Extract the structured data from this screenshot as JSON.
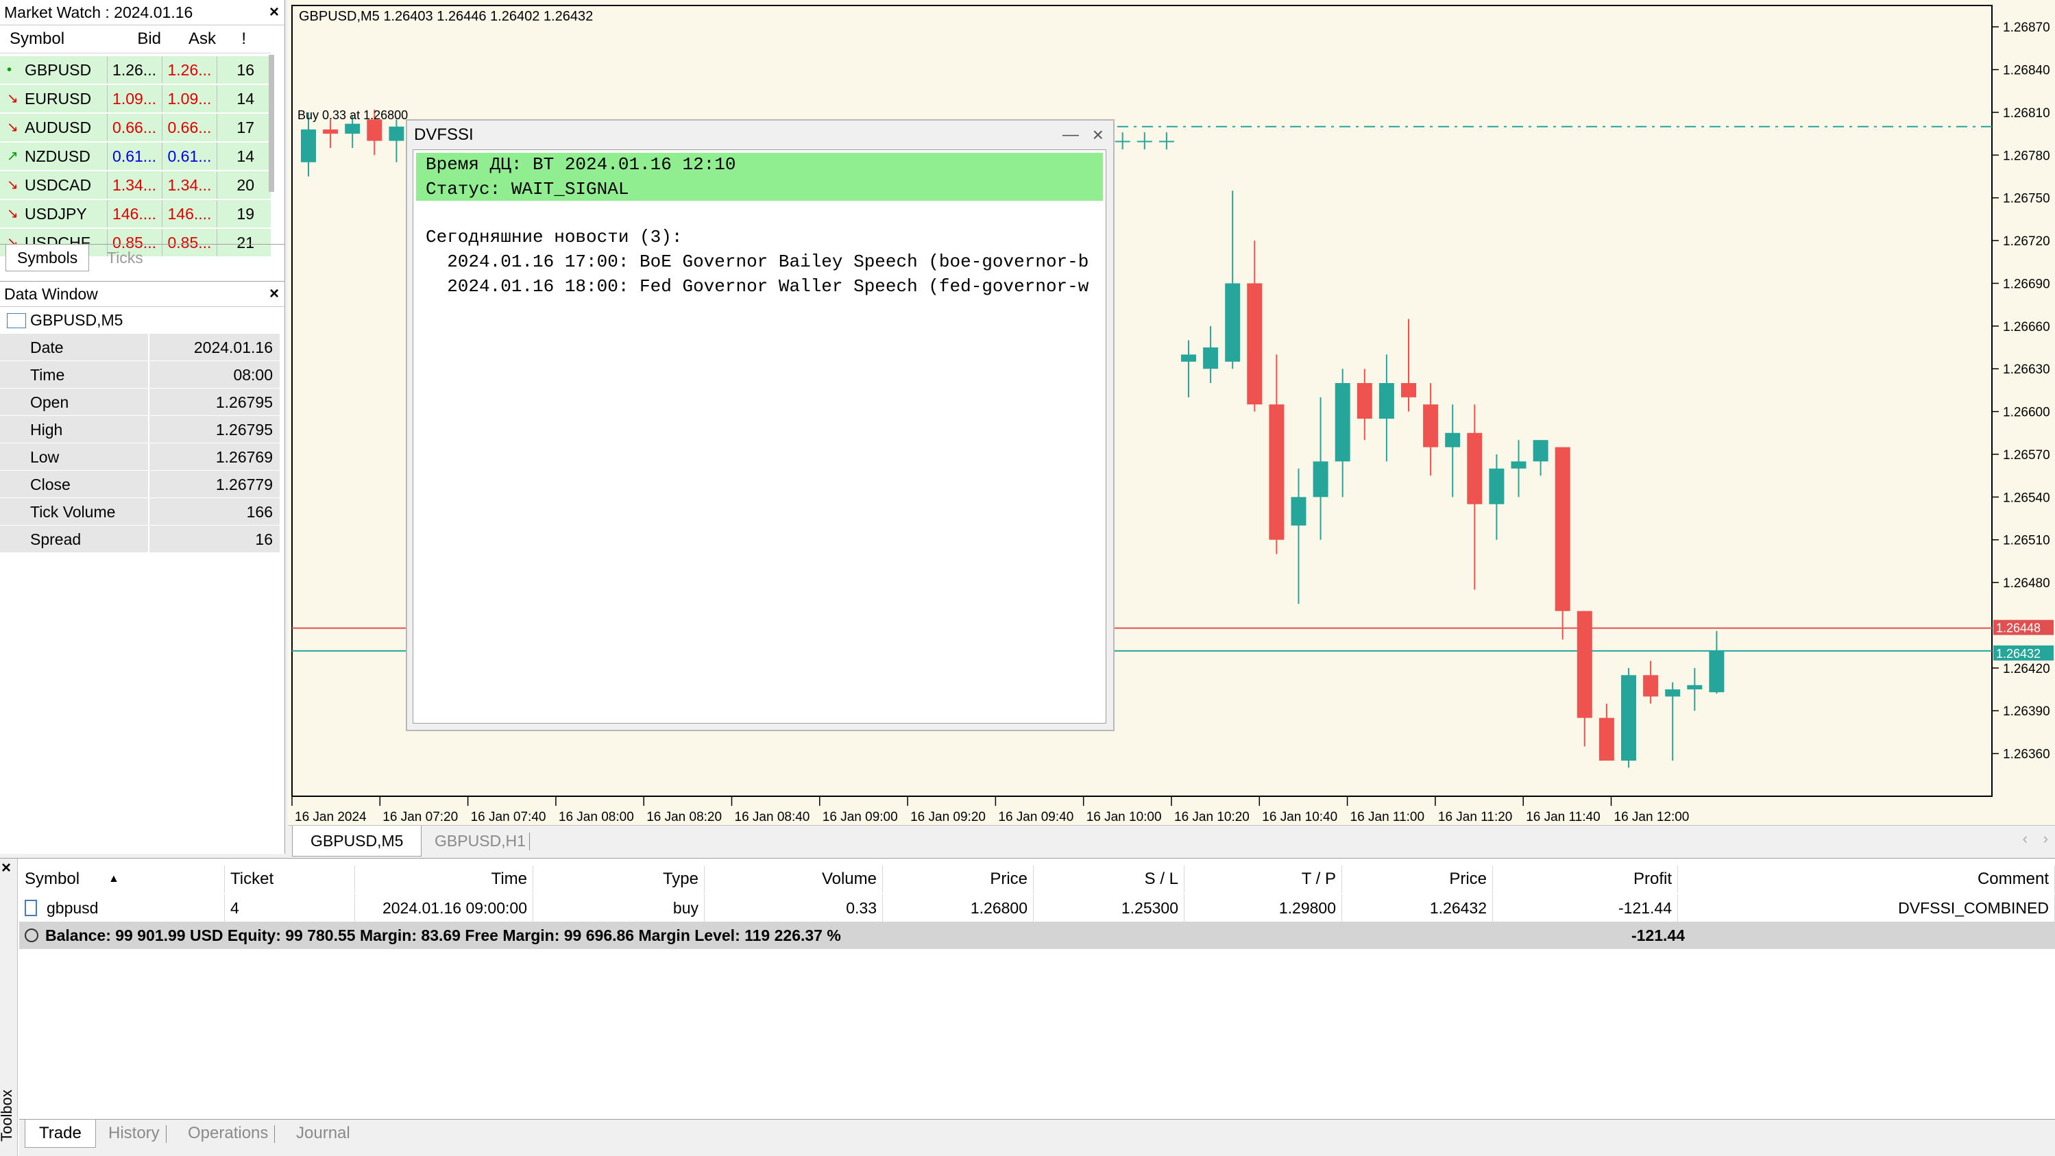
{
  "market_watch": {
    "title": "Market Watch : 2024.01.16",
    "columns": {
      "symbol": "Symbol",
      "bid": "Bid",
      "ask": "Ask",
      "spread": "!"
    },
    "rows": [
      {
        "symbol": "GBPUSD",
        "bid": "1.26...",
        "ask": "1.26...",
        "spread": "16",
        "dir": "neutral",
        "bid_color": "black",
        "ask_color": "red"
      },
      {
        "symbol": "EURUSD",
        "bid": "1.09...",
        "ask": "1.09...",
        "spread": "14",
        "dir": "down",
        "bid_color": "red",
        "ask_color": "red"
      },
      {
        "symbol": "AUDUSD",
        "bid": "0.66...",
        "ask": "0.66...",
        "spread": "17",
        "dir": "down",
        "bid_color": "red",
        "ask_color": "red"
      },
      {
        "symbol": "NZDUSD",
        "bid": "0.61...",
        "ask": "0.61...",
        "spread": "14",
        "dir": "up",
        "bid_color": "blue",
        "ask_color": "blue"
      },
      {
        "symbol": "USDCAD",
        "bid": "1.34...",
        "ask": "1.34...",
        "spread": "20",
        "dir": "down",
        "bid_color": "red",
        "ask_color": "red"
      },
      {
        "symbol": "USDJPY",
        "bid": "146....",
        "ask": "146....",
        "spread": "19",
        "dir": "down",
        "bid_color": "red",
        "ask_color": "red"
      },
      {
        "symbol": "USDCHF",
        "bid": "0.85...",
        "ask": "0.85...",
        "spread": "21",
        "dir": "down",
        "bid_color": "red",
        "ask_color": "red"
      }
    ],
    "tabs": [
      "Symbols",
      "Ticks"
    ]
  },
  "data_window": {
    "title": "Data Window",
    "symbol": "GBPUSD,M5",
    "rows": [
      {
        "k": "Date",
        "v": "2024.01.16"
      },
      {
        "k": "Time",
        "v": "08:00"
      },
      {
        "k": "Open",
        "v": "1.26795"
      },
      {
        "k": "High",
        "v": "1.26795"
      },
      {
        "k": "Low",
        "v": "1.26769"
      },
      {
        "k": "Close",
        "v": "1.26779"
      },
      {
        "k": "Tick Volume",
        "v": "166"
      },
      {
        "k": "Spread",
        "v": "16"
      }
    ]
  },
  "chart": {
    "header": "GBPUSD,M5  1.26403 1.26446 1.26402 1.26432",
    "trade_label": "Buy 0.33 at 1.26800",
    "price_labels": [
      "1.26870",
      "1.26840",
      "1.26810",
      "1.26780",
      "1.26750",
      "1.26720",
      "1.26690",
      "1.26660",
      "1.26630",
      "1.26600",
      "1.26570",
      "1.26540",
      "1.26510",
      "1.26480",
      "1.26420",
      "1.26390",
      "1.26360"
    ],
    "ask_label": "1.26448",
    "bid_label": "1.26432",
    "time_labels": [
      "16 Jan 2024",
      "16 Jan 07:20",
      "16 Jan 07:40",
      "16 Jan 08:00",
      "16 Jan 08:20",
      "16 Jan 08:40",
      "16 Jan 09:00",
      "16 Jan 09:20",
      "16 Jan 09:40",
      "16 Jan 10:00",
      "16 Jan 10:20",
      "16 Jan 10:40",
      "16 Jan 11:00",
      "16 Jan 11:20",
      "16 Jan 11:40",
      "16 Jan 12:00"
    ],
    "tabs": [
      "GBPUSD,M5",
      "GBPUSD,H1"
    ],
    "colors": {
      "bull": "#26a69a",
      "bear": "#ef5350",
      "bg": "#fbf8ea",
      "ask": "#e05050",
      "bid": "#26a69a"
    }
  },
  "chart_data": {
    "type": "candlestick",
    "ylim": [
      1.2633,
      1.26885
    ],
    "candles": [
      {
        "o": 1.26775,
        "h": 1.2681,
        "l": 1.26765,
        "c": 1.26798
      },
      {
        "o": 1.26798,
        "h": 1.26805,
        "l": 1.26785,
        "c": 1.26795
      },
      {
        "o": 1.26795,
        "h": 1.26808,
        "l": 1.26785,
        "c": 1.26802
      },
      {
        "o": 1.26805,
        "h": 1.26812,
        "l": 1.2678,
        "c": 1.2679
      },
      {
        "o": 1.2679,
        "h": 1.26805,
        "l": 1.26775,
        "c": 1.268
      },
      {
        "o": 1.268,
        "h": 1.26802,
        "l": 1.26785,
        "c": 1.26792
      },
      {
        "o": 1.2679,
        "h": 1.26796,
        "l": 1.26784,
        "c": 1.2679
      },
      {
        "o": 1.2679,
        "h": 1.26796,
        "l": 1.26784,
        "c": 1.2679
      },
      {
        "o": 1.2679,
        "h": 1.26796,
        "l": 1.26784,
        "c": 1.2679
      },
      {
        "o": 1.2679,
        "h": 1.26796,
        "l": 1.26784,
        "c": 1.2679
      },
      {
        "o": 1.2679,
        "h": 1.26796,
        "l": 1.26784,
        "c": 1.2679
      },
      {
        "o": 1.2679,
        "h": 1.26796,
        "l": 1.26784,
        "c": 1.2679
      },
      {
        "o": 1.2679,
        "h": 1.26796,
        "l": 1.26784,
        "c": 1.2679
      },
      {
        "o": 1.2679,
        "h": 1.26796,
        "l": 1.26784,
        "c": 1.2679
      },
      {
        "o": 1.2679,
        "h": 1.26796,
        "l": 1.26784,
        "c": 1.2679
      },
      {
        "o": 1.2679,
        "h": 1.26796,
        "l": 1.26784,
        "c": 1.2679
      },
      {
        "o": 1.2679,
        "h": 1.26796,
        "l": 1.26784,
        "c": 1.2679
      },
      {
        "o": 1.2679,
        "h": 1.26796,
        "l": 1.26784,
        "c": 1.2679
      },
      {
        "o": 1.2679,
        "h": 1.26796,
        "l": 1.26784,
        "c": 1.2679
      },
      {
        "o": 1.2679,
        "h": 1.26796,
        "l": 1.26784,
        "c": 1.2679
      },
      {
        "o": 1.2679,
        "h": 1.26796,
        "l": 1.26784,
        "c": 1.2679
      },
      {
        "o": 1.2679,
        "h": 1.26796,
        "l": 1.26784,
        "c": 1.2679
      },
      {
        "o": 1.2679,
        "h": 1.26796,
        "l": 1.26784,
        "c": 1.2679
      },
      {
        "o": 1.2679,
        "h": 1.26796,
        "l": 1.26784,
        "c": 1.2679
      },
      {
        "o": 1.2679,
        "h": 1.26796,
        "l": 1.26784,
        "c": 1.2679
      },
      {
        "o": 1.2679,
        "h": 1.26796,
        "l": 1.26784,
        "c": 1.2679
      },
      {
        "o": 1.2679,
        "h": 1.26796,
        "l": 1.26784,
        "c": 1.2679
      },
      {
        "o": 1.2679,
        "h": 1.26796,
        "l": 1.26784,
        "c": 1.2679
      },
      {
        "o": 1.2679,
        "h": 1.26796,
        "l": 1.26784,
        "c": 1.2679
      },
      {
        "o": 1.2679,
        "h": 1.26796,
        "l": 1.26784,
        "c": 1.2679
      },
      {
        "o": 1.2679,
        "h": 1.26796,
        "l": 1.26784,
        "c": 1.2679
      },
      {
        "o": 1.2679,
        "h": 1.26796,
        "l": 1.26784,
        "c": 1.2679
      },
      {
        "o": 1.2679,
        "h": 1.26796,
        "l": 1.26784,
        "c": 1.2679
      },
      {
        "o": 1.2679,
        "h": 1.26796,
        "l": 1.26784,
        "c": 1.2679
      },
      {
        "o": 1.2679,
        "h": 1.26796,
        "l": 1.26784,
        "c": 1.2679
      },
      {
        "o": 1.2679,
        "h": 1.26796,
        "l": 1.26784,
        "c": 1.2679
      },
      {
        "o": 1.2679,
        "h": 1.26796,
        "l": 1.26784,
        "c": 1.2679
      },
      {
        "o": 1.2679,
        "h": 1.26796,
        "l": 1.26784,
        "c": 1.2679
      },
      {
        "o": 1.2679,
        "h": 1.26796,
        "l": 1.26784,
        "c": 1.2679
      },
      {
        "o": 1.2679,
        "h": 1.26796,
        "l": 1.26784,
        "c": 1.2679
      },
      {
        "o": 1.26635,
        "h": 1.2665,
        "l": 1.2661,
        "c": 1.2664
      },
      {
        "o": 1.2663,
        "h": 1.2666,
        "l": 1.2662,
        "c": 1.26645
      },
      {
        "o": 1.26635,
        "h": 1.26755,
        "l": 1.2663,
        "c": 1.2669
      },
      {
        "o": 1.2669,
        "h": 1.2672,
        "l": 1.266,
        "c": 1.26605
      },
      {
        "o": 1.26605,
        "h": 1.2664,
        "l": 1.265,
        "c": 1.2651
      },
      {
        "o": 1.2652,
        "h": 1.2656,
        "l": 1.26465,
        "c": 1.2654
      },
      {
        "o": 1.2654,
        "h": 1.2661,
        "l": 1.2651,
        "c": 1.26565
      },
      {
        "o": 1.26565,
        "h": 1.2663,
        "l": 1.2654,
        "c": 1.2662
      },
      {
        "o": 1.2662,
        "h": 1.2663,
        "l": 1.2658,
        "c": 1.26595
      },
      {
        "o": 1.26595,
        "h": 1.2664,
        "l": 1.26565,
        "c": 1.2662
      },
      {
        "o": 1.2662,
        "h": 1.26665,
        "l": 1.266,
        "c": 1.2661
      },
      {
        "o": 1.26605,
        "h": 1.2662,
        "l": 1.26555,
        "c": 1.26575
      },
      {
        "o": 1.26575,
        "h": 1.26605,
        "l": 1.2654,
        "c": 1.26585
      },
      {
        "o": 1.26585,
        "h": 1.26605,
        "l": 1.26475,
        "c": 1.26535
      },
      {
        "o": 1.26535,
        "h": 1.2657,
        "l": 1.2651,
        "c": 1.2656
      },
      {
        "o": 1.2656,
        "h": 1.2658,
        "l": 1.2654,
        "c": 1.26565
      },
      {
        "o": 1.26565,
        "h": 1.2658,
        "l": 1.26555,
        "c": 1.2658
      },
      {
        "o": 1.26575,
        "h": 1.26575,
        "l": 1.2644,
        "c": 1.2646
      },
      {
        "o": 1.2646,
        "h": 1.2646,
        "l": 1.26365,
        "c": 1.26385
      },
      {
        "o": 1.26385,
        "h": 1.26395,
        "l": 1.26355,
        "c": 1.26355
      },
      {
        "o": 1.26355,
        "h": 1.2642,
        "l": 1.2635,
        "c": 1.26415
      },
      {
        "o": 1.26415,
        "h": 1.26425,
        "l": 1.26395,
        "c": 1.264
      },
      {
        "o": 1.264,
        "h": 1.2641,
        "l": 1.26355,
        "c": 1.26405
      },
      {
        "o": 1.26405,
        "h": 1.2642,
        "l": 1.2639,
        "c": 1.26408
      },
      {
        "o": 1.26403,
        "h": 1.26446,
        "l": 1.26402,
        "c": 1.26432
      }
    ]
  },
  "dialog": {
    "title": "DVFSSI",
    "line1": "Время ДЦ: ВТ 2024.01.16 12:10",
    "line2": "Статус: WAIT_SIGNAL",
    "news_header": "Сегодняшние новости (3):",
    "news": [
      "  2024.01.16 17:00: BoE Governor Bailey Speech (boe-governor-b",
      "  2024.01.16 18:00: Fed Governor Waller Speech (fed-governor-w"
    ]
  },
  "trade": {
    "columns": [
      "Symbol",
      "Ticket",
      "Time",
      "Type",
      "Volume",
      "Price",
      "S / L",
      "T / P",
      "Price",
      "Profit",
      "Comment"
    ],
    "row": [
      "gbpusd",
      "4",
      "2024.01.16 09:00:00",
      "buy",
      "0.33",
      "1.26800",
      "1.25300",
      "1.29800",
      "1.26432",
      "-121.44",
      "DVFSSI_COMBINED"
    ],
    "balance": "Balance: 99 901.99 USD  Equity: 99 780.55  Margin: 83.69  Free Margin: 99 696.86  Margin Level: 119 226.37 %",
    "balance_profit": "-121.44",
    "tabs": [
      "Trade",
      "History",
      "Operations",
      "Journal"
    ],
    "side_label": "Toolbox"
  }
}
